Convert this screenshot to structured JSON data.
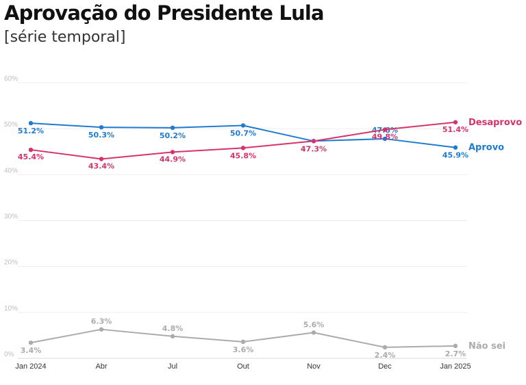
{
  "header": {
    "title": "Aprovação do Presidente Lula",
    "subtitle": "[série temporal]"
  },
  "chart_data": {
    "type": "line",
    "categories": [
      "Jan 2024",
      "Abr",
      "Jul",
      "Out",
      "Nov",
      "Dec",
      "Jan 2025"
    ],
    "y_ticks": [
      "0%",
      "10%",
      "20%",
      "30%",
      "40%",
      "50%",
      "60%"
    ],
    "ylim": [
      0,
      60
    ],
    "grid": true,
    "series": [
      {
        "name": "Aprovo",
        "color": "#1f7bd0",
        "values": [
          51.2,
          50.3,
          50.2,
          50.7,
          47.3,
          47.8,
          45.9
        ],
        "labels": [
          "51.2%",
          "50.3%",
          "50.2%",
          "50.7%",
          "",
          "47.8%",
          "45.9%"
        ]
      },
      {
        "name": "Desaprovo",
        "color": "#d6336c",
        "values": [
          45.4,
          43.4,
          44.9,
          45.8,
          47.3,
          49.8,
          51.4
        ],
        "labels": [
          "45.4%",
          "43.4%",
          "44.9%",
          "45.8%",
          "47.3%",
          "49.8%",
          "51.4%"
        ]
      },
      {
        "name": "Não sei",
        "color": "#ababab",
        "values": [
          3.4,
          6.3,
          4.8,
          3.6,
          5.6,
          2.4,
          2.7
        ],
        "labels": [
          "3.4%",
          "6.3%",
          "4.8%",
          "3.6%",
          "5.6%",
          "2.4%",
          "2.7%"
        ]
      }
    ]
  }
}
